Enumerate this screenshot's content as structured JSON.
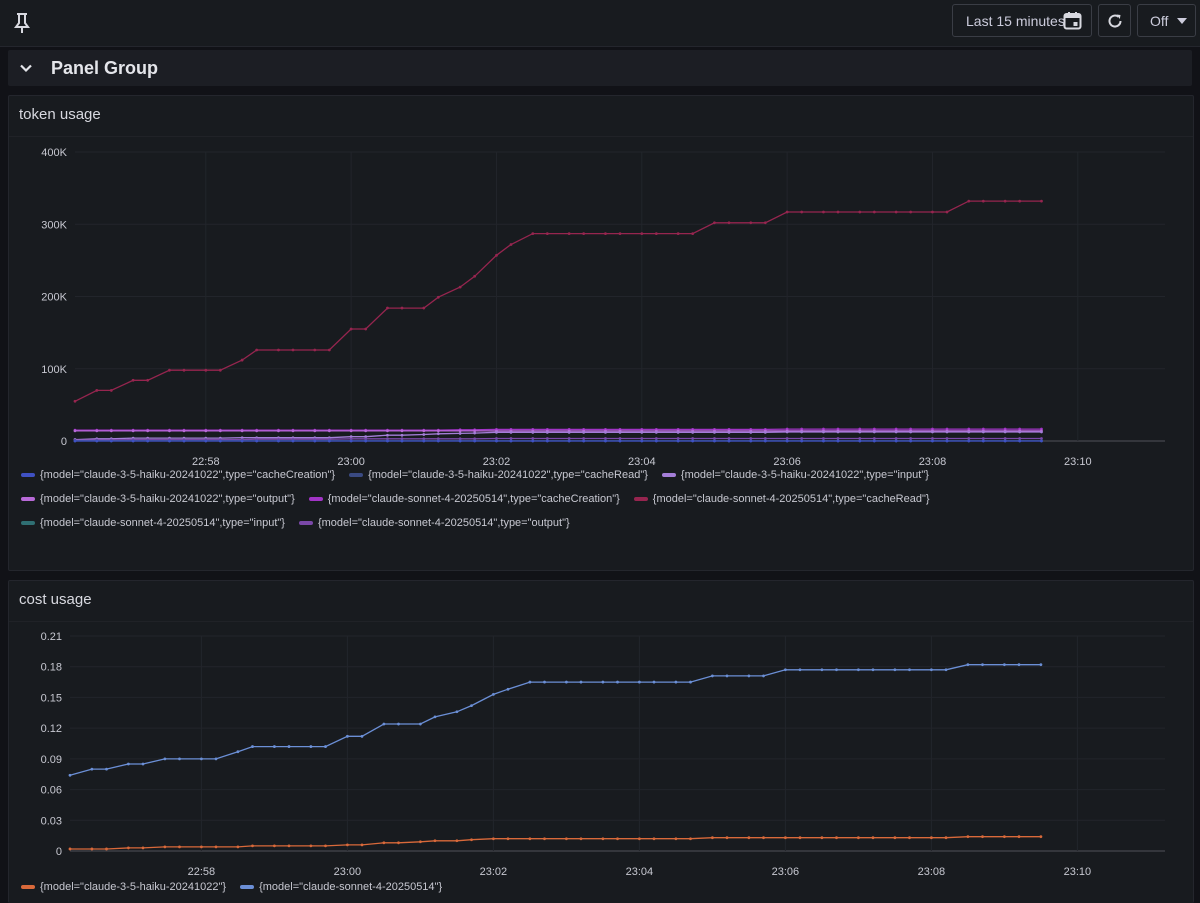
{
  "toolbar": {
    "time_range_label": "Last 15 minutes",
    "refresh_interval_label": "Off"
  },
  "group": {
    "title": "Panel Group"
  },
  "panels": [
    {
      "title": "token usage",
      "legend_rows": [
        [
          {
            "label": "{model=\"claude-3-5-haiku-20241022\",type=\"cacheCreation\"}",
            "color": "#3f51c3"
          },
          {
            "label": "{model=\"claude-3-5-haiku-20241022\",type=\"cacheRead\"}",
            "color": "#3a4a82"
          },
          {
            "label": "{model=\"claude-3-5-haiku-20241022\",type=\"input\"}",
            "color": "#a47ed8"
          }
        ],
        [
          {
            "label": "{model=\"claude-3-5-haiku-20241022\",type=\"output\"}",
            "color": "#b86ad8"
          },
          {
            "label": "{model=\"claude-sonnet-4-20250514\",type=\"cacheCreation\"}",
            "color": "#a134c6"
          },
          {
            "label": "{model=\"claude-sonnet-4-20250514\",type=\"cacheRead\"}",
            "color": "#96254f"
          }
        ],
        [
          {
            "label": "{model=\"claude-sonnet-4-20250514\",type=\"input\"}",
            "color": "#2f6f73"
          },
          {
            "label": "{model=\"claude-sonnet-4-20250514\",type=\"output\"}",
            "color": "#7a48a8"
          }
        ]
      ]
    },
    {
      "title": "cost usage",
      "legend_rows": [
        [
          {
            "label": "{model=\"claude-3-5-haiku-20241022\"}",
            "color": "#d9693a"
          },
          {
            "label": "{model=\"claude-sonnet-4-20250514\"}",
            "color": "#6b8fd6"
          }
        ]
      ]
    }
  ],
  "chart_data": [
    {
      "type": "line",
      "title": "token usage",
      "x_ticks": [
        "22:58",
        "23:00",
        "23:02",
        "23:04",
        "23:06",
        "23:08",
        "23:10"
      ],
      "x_range_minutes": [
        "22:56.2",
        "23:11.2"
      ],
      "y_ticks": [
        "0",
        "100K",
        "200K",
        "300K",
        "400K"
      ],
      "ylim": [
        0,
        400000
      ],
      "grid": true,
      "legend_position": "bottom",
      "x": [
        "22:56.2",
        "22:56.5",
        "22:56.7",
        "22:57.0",
        "22:57.2",
        "22:57.5",
        "22:57.7",
        "22:58.0",
        "22:58.2",
        "22:58.5",
        "22:58.7",
        "22:59.0",
        "22:59.2",
        "22:59.5",
        "22:59.7",
        "23:00.0",
        "23:00.2",
        "23:00.5",
        "23:00.7",
        "23:01.0",
        "23:01.2",
        "23:01.5",
        "23:01.7",
        "23:02.0",
        "23:02.2",
        "23:02.5",
        "23:02.7",
        "23:03.0",
        "23:03.2",
        "23:03.5",
        "23:03.7",
        "23:04.0",
        "23:04.2",
        "23:04.5",
        "23:04.7",
        "23:05.0",
        "23:05.2",
        "23:05.5",
        "23:05.7",
        "23:06.0",
        "23:06.2",
        "23:06.5",
        "23:06.7",
        "23:07.0",
        "23:07.2",
        "23:07.5",
        "23:07.7",
        "23:08.0",
        "23:08.2",
        "23:08.5",
        "23:08.7",
        "23:09.0",
        "23:09.2",
        "23:09.5"
      ],
      "series": [
        {
          "name": "{model=\"claude-sonnet-4-20250514\",type=\"cacheRead\"}",
          "color": "#96254f",
          "values": [
            55000,
            70000,
            70000,
            84000,
            84000,
            98000,
            98000,
            98000,
            98000,
            112000,
            126000,
            126000,
            126000,
            126000,
            126000,
            155000,
            155000,
            184000,
            184000,
            184000,
            199000,
            213000,
            228000,
            257000,
            272000,
            287000,
            287000,
            287000,
            287000,
            287000,
            287000,
            287000,
            287000,
            287000,
            287000,
            302000,
            302000,
            302000,
            302000,
            317000,
            317000,
            317000,
            317000,
            317000,
            317000,
            317000,
            317000,
            317000,
            317000,
            332000,
            332000,
            332000,
            332000,
            332000
          ]
        },
        {
          "name": "{model=\"claude-sonnet-4-20250514\",type=\"cacheCreation\"}",
          "color": "#a134c6",
          "values": [
            15000,
            15000,
            15000,
            15000,
            15000,
            15000,
            15000,
            15000,
            15000,
            15000,
            15000,
            15000,
            15000,
            15000,
            15000,
            15000,
            15000,
            15000,
            15000,
            15000,
            15000,
            15500,
            15500,
            16000,
            16000,
            16000,
            16000,
            16000,
            16000,
            16000,
            16000,
            16000,
            16000,
            16000,
            16000,
            16000,
            16000,
            16000,
            16000,
            16500,
            16500,
            16500,
            16500,
            16500,
            16500,
            16500,
            16500,
            16500,
            16500,
            16500,
            16500,
            16500,
            16500,
            16500
          ]
        },
        {
          "name": "{model=\"claude-3-5-haiku-20241022\",type=\"output\"}",
          "color": "#b86ad8",
          "values": [
            14000,
            14000,
            14000,
            14000,
            14000,
            14000,
            14000,
            14000,
            14000,
            14000,
            14000,
            14000,
            14000,
            14000,
            14000,
            14000,
            14000,
            14000,
            14000,
            14000,
            14000,
            14000,
            14000,
            14000,
            14000,
            14000,
            14000,
            14000,
            14000,
            14000,
            14000,
            14000,
            14000,
            14000,
            14000,
            14000,
            14000,
            14000,
            14000,
            14000,
            14000,
            14000,
            14000,
            14000,
            14000,
            14000,
            14000,
            14000,
            14000,
            14000,
            14000,
            14000,
            14000,
            14000
          ]
        },
        {
          "name": "{model=\"claude-3-5-haiku-20241022\",type=\"input\"}",
          "color": "#a47ed8",
          "values": [
            2000,
            3000,
            3000,
            4000,
            4000,
            4000,
            4000,
            4000,
            4000,
            4500,
            4500,
            4500,
            4500,
            4500,
            4500,
            6000,
            6000,
            8000,
            8000,
            9000,
            10000,
            10500,
            11000,
            12000,
            12000,
            12000,
            12000,
            12000,
            12000,
            12000,
            12000,
            12000,
            12000,
            12000,
            12000,
            12000,
            12000,
            12000,
            12000,
            12500,
            12500,
            12500,
            12500,
            12500,
            12500,
            12500,
            12500,
            12500,
            12500,
            12500,
            12500,
            12500,
            12500,
            12500
          ]
        },
        {
          "name": "{model=\"claude-sonnet-4-20250514\",type=\"output\"}",
          "color": "#7a48a8",
          "values": [
            1000,
            1500,
            1500,
            2000,
            2000,
            2000,
            2000,
            2000,
            2000,
            2000,
            2500,
            2500,
            2500,
            2500,
            2500,
            3000,
            3000,
            3000,
            3000,
            3000,
            3000,
            3000,
            3000,
            3500,
            3500,
            3500,
            3500,
            3500,
            3500,
            3500,
            3500,
            3500,
            3500,
            3500,
            3500,
            3500,
            3500,
            3500,
            3500,
            3500,
            3500,
            3500,
            3500,
            3500,
            3500,
            3500,
            3500,
            3500,
            3500,
            3500,
            3500,
            3500,
            3500,
            3500
          ]
        },
        {
          "name": "{model=\"claude-sonnet-4-20250514\",type=\"input\"}",
          "color": "#2f6f73",
          "values": [
            200,
            200,
            200,
            200,
            200,
            200,
            200,
            200,
            200,
            200,
            200,
            200,
            200,
            200,
            200,
            200,
            200,
            200,
            200,
            200,
            200,
            200,
            200,
            200,
            200,
            200,
            200,
            200,
            200,
            200,
            200,
            200,
            200,
            200,
            200,
            200,
            200,
            200,
            200,
            200,
            200,
            200,
            200,
            200,
            200,
            200,
            200,
            200,
            200,
            200,
            200,
            200,
            200,
            200
          ]
        },
        {
          "name": "{model=\"claude-3-5-haiku-20241022\",type=\"cacheRead\"}",
          "color": "#3a4a82",
          "values": [
            0,
            0,
            0,
            0,
            0,
            0,
            0,
            0,
            0,
            0,
            0,
            0,
            0,
            0,
            0,
            0,
            0,
            0,
            0,
            0,
            0,
            0,
            0,
            0,
            0,
            0,
            0,
            0,
            0,
            0,
            0,
            0,
            0,
            0,
            0,
            0,
            0,
            0,
            0,
            0,
            0,
            0,
            0,
            0,
            0,
            0,
            0,
            0,
            0,
            0,
            0,
            0,
            0,
            0
          ]
        },
        {
          "name": "{model=\"claude-3-5-haiku-20241022\",type=\"cacheCreation\"}",
          "color": "#3f51c3",
          "values": [
            0,
            0,
            0,
            0,
            0,
            0,
            0,
            0,
            0,
            0,
            0,
            0,
            0,
            0,
            0,
            0,
            0,
            0,
            0,
            0,
            0,
            0,
            0,
            0,
            0,
            0,
            0,
            0,
            0,
            0,
            0,
            0,
            0,
            0,
            0,
            0,
            0,
            0,
            0,
            0,
            0,
            0,
            0,
            0,
            0,
            0,
            0,
            0,
            0,
            0,
            0,
            0,
            0,
            0
          ]
        }
      ]
    },
    {
      "type": "line",
      "title": "cost usage",
      "x_ticks": [
        "22:58",
        "23:00",
        "23:02",
        "23:04",
        "23:06",
        "23:08",
        "23:10"
      ],
      "y_ticks": [
        "0",
        "0.03",
        "0.06",
        "0.09",
        "0.12",
        "0.15",
        "0.18",
        "0.21"
      ],
      "ylim": [
        0,
        0.21
      ],
      "grid": true,
      "legend_position": "bottom",
      "x": [
        "22:56.2",
        "22:56.5",
        "22:56.7",
        "22:57.0",
        "22:57.2",
        "22:57.5",
        "22:57.7",
        "22:58.0",
        "22:58.2",
        "22:58.5",
        "22:58.7",
        "22:59.0",
        "22:59.2",
        "22:59.5",
        "22:59.7",
        "23:00.0",
        "23:00.2",
        "23:00.5",
        "23:00.7",
        "23:01.0",
        "23:01.2",
        "23:01.5",
        "23:01.7",
        "23:02.0",
        "23:02.2",
        "23:02.5",
        "23:02.7",
        "23:03.0",
        "23:03.2",
        "23:03.5",
        "23:03.7",
        "23:04.0",
        "23:04.2",
        "23:04.5",
        "23:04.7",
        "23:05.0",
        "23:05.2",
        "23:05.5",
        "23:05.7",
        "23:06.0",
        "23:06.2",
        "23:06.5",
        "23:06.7",
        "23:07.0",
        "23:07.2",
        "23:07.5",
        "23:07.7",
        "23:08.0",
        "23:08.2",
        "23:08.5",
        "23:08.7",
        "23:09.0",
        "23:09.2",
        "23:09.5"
      ],
      "series": [
        {
          "name": "{model=\"claude-sonnet-4-20250514\"}",
          "color": "#6b8fd6",
          "values": [
            0.074,
            0.08,
            0.08,
            0.085,
            0.085,
            0.09,
            0.09,
            0.09,
            0.09,
            0.097,
            0.102,
            0.102,
            0.102,
            0.102,
            0.102,
            0.112,
            0.112,
            0.124,
            0.124,
            0.124,
            0.131,
            0.136,
            0.142,
            0.153,
            0.158,
            0.165,
            0.165,
            0.165,
            0.165,
            0.165,
            0.165,
            0.165,
            0.165,
            0.165,
            0.165,
            0.171,
            0.171,
            0.171,
            0.171,
            0.177,
            0.177,
            0.177,
            0.177,
            0.177,
            0.177,
            0.177,
            0.177,
            0.177,
            0.177,
            0.182,
            0.182,
            0.182,
            0.182,
            0.182
          ]
        },
        {
          "name": "{model=\"claude-3-5-haiku-20241022\"}",
          "color": "#d9693a",
          "values": [
            0.002,
            0.002,
            0.002,
            0.003,
            0.003,
            0.004,
            0.004,
            0.004,
            0.004,
            0.004,
            0.005,
            0.005,
            0.005,
            0.005,
            0.005,
            0.006,
            0.006,
            0.008,
            0.008,
            0.009,
            0.01,
            0.01,
            0.011,
            0.012,
            0.012,
            0.012,
            0.012,
            0.012,
            0.012,
            0.012,
            0.012,
            0.012,
            0.012,
            0.012,
            0.012,
            0.013,
            0.013,
            0.013,
            0.013,
            0.013,
            0.013,
            0.013,
            0.013,
            0.013,
            0.013,
            0.013,
            0.013,
            0.013,
            0.013,
            0.014,
            0.014,
            0.014,
            0.014,
            0.014
          ]
        }
      ]
    }
  ]
}
